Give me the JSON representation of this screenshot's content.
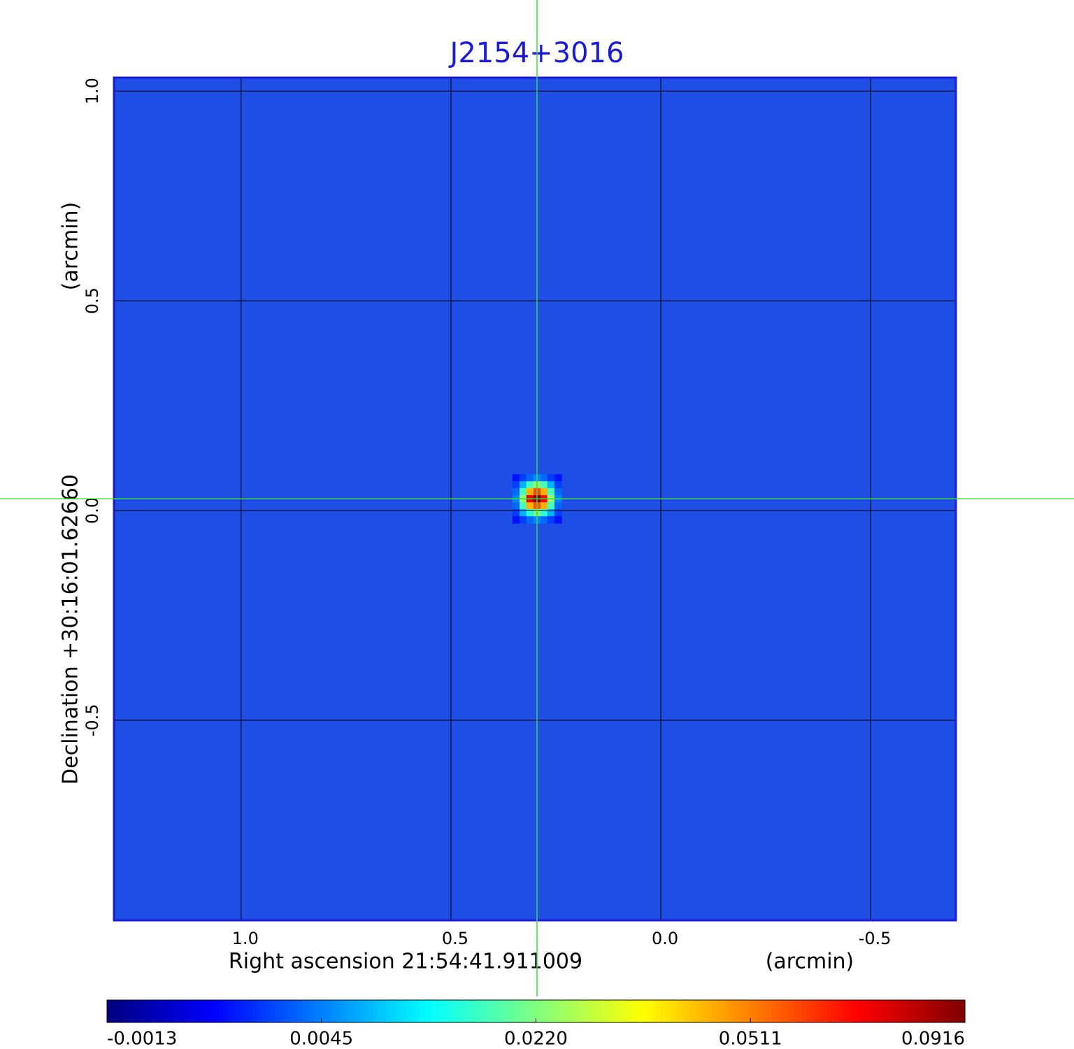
{
  "chart_data": {
    "type": "heatmap",
    "title": "J2154+3016",
    "xlabel": "Right ascension  21:54:41.911009",
    "xunit": "(arcmin)",
    "ylabel": "Declination  +30:16:01.62660",
    "yunit": "(arcmin)",
    "xlim": [
      1.303,
      -0.703
    ],
    "ylim": [
      -0.977,
      1.032
    ],
    "xticks": [
      {
        "value": 1,
        "label": "1.0"
      },
      0.5,
      {
        "value": 0,
        "label": "0.0"
      },
      -0.5
    ],
    "yticks": [
      {
        "value": 1,
        "label": "1.0"
      },
      0.5,
      {
        "value": 0,
        "label": "0.0"
      },
      -0.5
    ],
    "grid": true,
    "background_color": "#1f4ee6",
    "frame_color": "#1a1ad8",
    "crosshair": {
      "x": 0.295,
      "y": 0.028,
      "color": "#3ddc3d"
    },
    "x": [
      0.345,
      0.328,
      0.312,
      0.295,
      0.278,
      0.262,
      0.245
    ],
    "y": [
      0.078,
      0.061,
      0.045,
      0.028,
      0.011,
      -0.005,
      -0.022
    ],
    "z": [
      [
        0.002,
        0.003,
        0.004,
        0.005,
        0.004,
        0.003,
        0.002
      ],
      [
        0.003,
        0.008,
        0.018,
        0.024,
        0.018,
        0.008,
        0.003
      ],
      [
        0.004,
        0.018,
        0.045,
        0.06,
        0.045,
        0.018,
        0.004
      ],
      [
        0.005,
        0.024,
        0.075,
        0.0916,
        0.07,
        0.024,
        0.005
      ],
      [
        0.004,
        0.018,
        0.045,
        0.058,
        0.045,
        0.018,
        0.004
      ],
      [
        0.003,
        0.008,
        0.016,
        0.022,
        0.016,
        0.008,
        0.003
      ],
      [
        0.002,
        0.003,
        0.004,
        0.005,
        0.004,
        0.003,
        0.002
      ]
    ],
    "colorbar_ticks": [
      -0.0013,
      0.0045,
      {
        "value": 0.022,
        "label": "0.0220"
      },
      0.0511,
      0.0916
    ]
  }
}
